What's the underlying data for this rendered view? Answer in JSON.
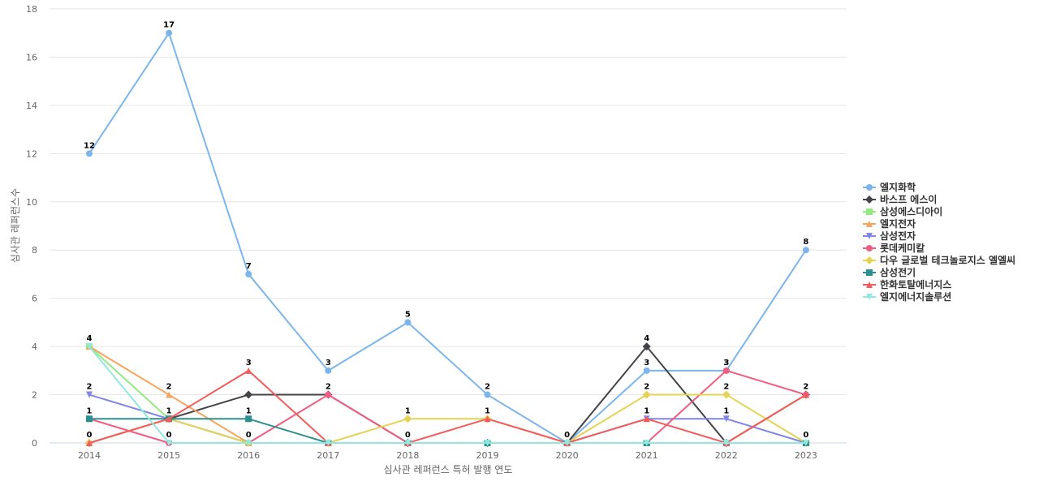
{
  "chart_data": {
    "type": "line",
    "title": "",
    "xlabel": "심사관 레퍼런스 특허 발행 연도",
    "ylabel": "심사관 레퍼런스수",
    "ylim": [
      0,
      18
    ],
    "yticks": [
      0,
      2,
      4,
      6,
      8,
      10,
      12,
      14,
      16,
      18
    ],
    "grid": true,
    "legend_position": "right",
    "x": [
      "2014",
      "2015",
      "2016",
      "2017",
      "2018",
      "2019",
      "2020",
      "2021",
      "2022",
      "2023"
    ],
    "series": [
      {
        "name": "엘지화학",
        "color": "#7cb5ec",
        "marker": "circle",
        "values": [
          12,
          17,
          7,
          3,
          5,
          2,
          0,
          3,
          3,
          8
        ],
        "labels_shown": [
          true,
          true,
          true,
          true,
          true,
          true,
          true,
          true,
          true,
          true
        ]
      },
      {
        "name": "바스프 에스이",
        "color": "#434348",
        "marker": "diamond",
        "values": [
          0,
          1,
          2,
          2,
          0,
          0,
          0,
          4,
          0,
          2
        ],
        "labels_shown": [
          false,
          false,
          false,
          false,
          false,
          false,
          false,
          true,
          false,
          false
        ]
      },
      {
        "name": "삼성에스디아이",
        "color": "#90ed7d",
        "marker": "square",
        "values": [
          4,
          1,
          0,
          0,
          0,
          0,
          0,
          0,
          0,
          0
        ],
        "labels_shown": [
          false,
          false,
          false,
          false,
          false,
          false,
          false,
          false,
          false,
          false
        ]
      },
      {
        "name": "엘지전자",
        "color": "#f7a35c",
        "marker": "triangle",
        "values": [
          4,
          2,
          0,
          0,
          0,
          0,
          0,
          0,
          0,
          2
        ],
        "labels_shown": [
          true,
          true,
          false,
          false,
          false,
          false,
          false,
          false,
          false,
          false
        ]
      },
      {
        "name": "삼성전자",
        "color": "#8085e9",
        "marker": "triangle-down",
        "values": [
          2,
          1,
          0,
          0,
          0,
          0,
          0,
          1,
          1,
          0
        ],
        "labels_shown": [
          true,
          false,
          false,
          false,
          false,
          false,
          false,
          false,
          true,
          false
        ]
      },
      {
        "name": "롯데케미칼",
        "color": "#f15c80",
        "marker": "circle",
        "values": [
          1,
          0,
          0,
          2,
          0,
          0,
          0,
          0,
          3,
          2
        ],
        "labels_shown": [
          false,
          true,
          true,
          true,
          true,
          false,
          false,
          false,
          true,
          true
        ]
      },
      {
        "name": "다우 글로벌 테크놀로지스 엘엘씨",
        "color": "#e4d354",
        "marker": "diamond",
        "values": [
          0,
          1,
          0,
          0,
          1,
          1,
          0,
          2,
          2,
          0
        ],
        "labels_shown": [
          false,
          false,
          false,
          false,
          true,
          false,
          false,
          true,
          true,
          true
        ]
      },
      {
        "name": "삼성전기",
        "color": "#2b908f",
        "marker": "square",
        "values": [
          1,
          1,
          1,
          0,
          0,
          0,
          0,
          0,
          0,
          0
        ],
        "labels_shown": [
          true,
          false,
          true,
          false,
          false,
          false,
          false,
          false,
          false,
          false
        ]
      },
      {
        "name": "한화토탈에너지스",
        "color": "#f45b5b",
        "marker": "triangle",
        "values": [
          0,
          1,
          3,
          0,
          0,
          1,
          0,
          1,
          0,
          2
        ],
        "labels_shown": [
          true,
          true,
          true,
          false,
          false,
          true,
          false,
          true,
          false,
          false
        ]
      },
      {
        "name": "엘지에너지솔루션",
        "color": "#91e8e1",
        "marker": "triangle-down",
        "values": [
          4,
          0,
          0,
          0,
          0,
          0,
          0,
          0,
          0,
          0
        ],
        "labels_shown": [
          false,
          false,
          false,
          false,
          false,
          false,
          false,
          false,
          false,
          false
        ]
      }
    ]
  }
}
